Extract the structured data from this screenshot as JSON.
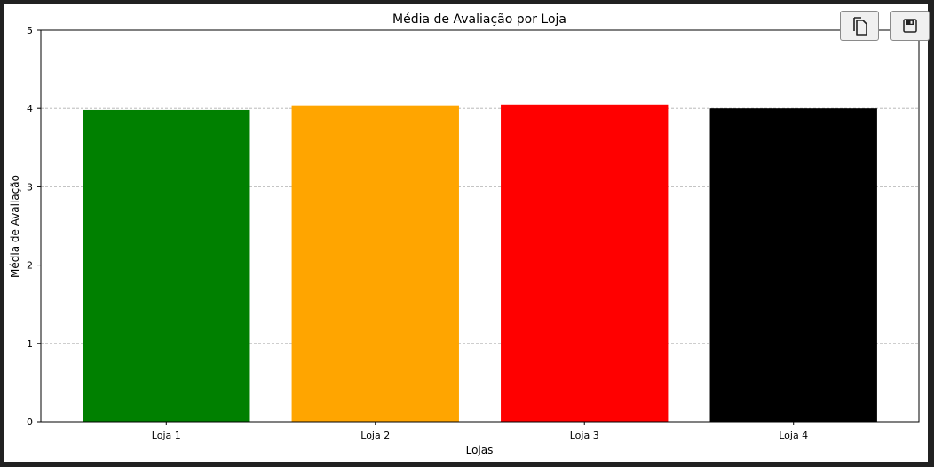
{
  "toolbar": {
    "copy_icon": "copy-icon",
    "save_icon": "floppy-disk-icon"
  },
  "chart_data": {
    "type": "bar",
    "title": "Média de Avaliação por Loja",
    "xlabel": "Lojas",
    "ylabel": "Média de Avaliação",
    "categories": [
      "Loja 1",
      "Loja 2",
      "Loja 3",
      "Loja 4"
    ],
    "values": [
      3.98,
      4.04,
      4.05,
      4.0
    ],
    "colors": [
      "#008000",
      "#ffa500",
      "#ff0000",
      "#000000"
    ],
    "ylim": [
      0,
      5
    ],
    "yticks": [
      "0",
      "1",
      "2",
      "3",
      "4",
      "5"
    ],
    "grid": "y-dashed",
    "grid_color": "#b0b0b0"
  }
}
